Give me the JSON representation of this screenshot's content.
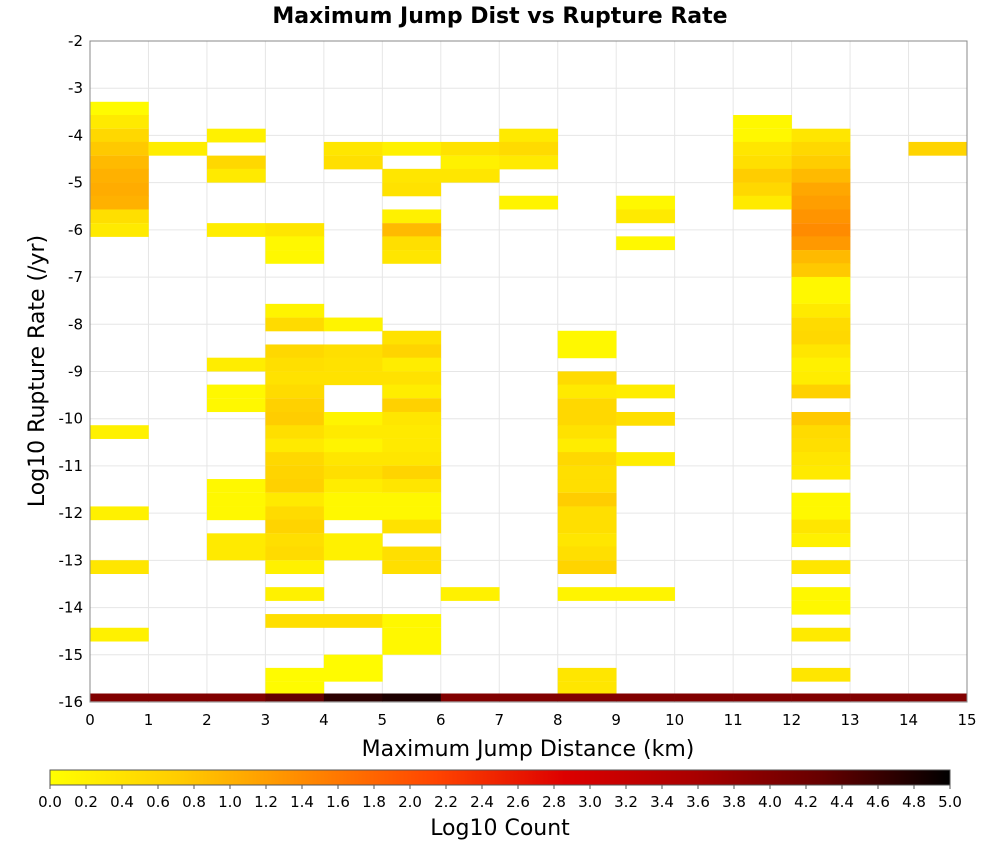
{
  "chart_data": {
    "type": "heatmap",
    "title": "Maximum Jump Dist vs Rupture Rate",
    "xlabel": "Maximum Jump Distance (km)",
    "ylabel": "Log10 Rupture Rate (/yr)",
    "xlim": [
      0,
      15
    ],
    "ylim": [
      -16,
      -2
    ],
    "x_ticks": [
      "0",
      "1",
      "2",
      "3",
      "4",
      "5",
      "6",
      "7",
      "8",
      "9",
      "10",
      "11",
      "12",
      "13",
      "14",
      "15"
    ],
    "y_ticks": [
      "-2",
      "-3",
      "-4",
      "-5",
      "-6",
      "-7",
      "-8",
      "-9",
      "-10",
      "-11",
      "-12",
      "-13",
      "-14",
      "-15",
      "-16"
    ],
    "x_bin_width": 1,
    "y_bin_height": 0.285,
    "grid": true,
    "colorbar": {
      "label": "Log10 Count",
      "range": [
        0,
        5
      ],
      "ticks": [
        "0.0",
        "0.2",
        "0.4",
        "0.6",
        "0.8",
        "1.0",
        "1.2",
        "1.4",
        "1.6",
        "1.8",
        "2.0",
        "2.2",
        "2.4",
        "2.6",
        "2.8",
        "3.0",
        "3.2",
        "3.4",
        "3.6",
        "3.8",
        "4.0",
        "4.2",
        "4.4",
        "4.6",
        "4.8",
        "5.0"
      ],
      "colors": [
        "#ffff00",
        "#ffcc00",
        "#ff8800",
        "#ff4400",
        "#dd0000",
        "#aa0000",
        "#660000",
        "#000000"
      ]
    },
    "cells": [
      {
        "x": 0,
        "y": -3.43,
        "v": 0.05
      },
      {
        "x": 0,
        "y": -3.71,
        "v": 0.3
      },
      {
        "x": 0,
        "y": -4.0,
        "v": 0.55
      },
      {
        "x": 0,
        "y": -4.28,
        "v": 0.75
      },
      {
        "x": 0,
        "y": -4.57,
        "v": 0.9
      },
      {
        "x": 0,
        "y": -4.85,
        "v": 1.0
      },
      {
        "x": 0,
        "y": -5.14,
        "v": 1.05
      },
      {
        "x": 0,
        "y": -5.42,
        "v": 1.0
      },
      {
        "x": 0,
        "y": -5.71,
        "v": 0.45
      },
      {
        "x": 0,
        "y": -6.0,
        "v": 0.3
      },
      {
        "x": 0,
        "y": -10.28,
        "v": 0.2
      },
      {
        "x": 0,
        "y": -12.0,
        "v": 0.2
      },
      {
        "x": 0,
        "y": -13.14,
        "v": 0.35
      },
      {
        "x": 0,
        "y": -14.57,
        "v": 0.2
      },
      {
        "x": 1,
        "y": -4.28,
        "v": 0.25
      },
      {
        "x": 2,
        "y": -4.0,
        "v": 0.2
      },
      {
        "x": 2,
        "y": -4.57,
        "v": 0.55
      },
      {
        "x": 2,
        "y": -4.85,
        "v": 0.3
      },
      {
        "x": 2,
        "y": -6.0,
        "v": 0.25
      },
      {
        "x": 2,
        "y": -8.85,
        "v": 0.25
      },
      {
        "x": 2,
        "y": -9.42,
        "v": 0.1
      },
      {
        "x": 2,
        "y": -9.71,
        "v": 0.1
      },
      {
        "x": 2,
        "y": -11.42,
        "v": 0.1
      },
      {
        "x": 2,
        "y": -11.71,
        "v": 0.1
      },
      {
        "x": 2,
        "y": -12.0,
        "v": 0.1
      },
      {
        "x": 2,
        "y": -12.57,
        "v": 0.3
      },
      {
        "x": 2,
        "y": -12.85,
        "v": 0.3
      },
      {
        "x": 3,
        "y": -6.0,
        "v": 0.35
      },
      {
        "x": 3,
        "y": -6.28,
        "v": 0.1
      },
      {
        "x": 3,
        "y": -6.57,
        "v": 0.1
      },
      {
        "x": 3,
        "y": -7.71,
        "v": 0.15
      },
      {
        "x": 3,
        "y": -8.0,
        "v": 0.5
      },
      {
        "x": 3,
        "y": -8.57,
        "v": 0.55
      },
      {
        "x": 3,
        "y": -8.85,
        "v": 0.45
      },
      {
        "x": 3,
        "y": -9.14,
        "v": 0.4
      },
      {
        "x": 3,
        "y": -9.42,
        "v": 0.5
      },
      {
        "x": 3,
        "y": -9.71,
        "v": 0.65
      },
      {
        "x": 3,
        "y": -10.0,
        "v": 0.7
      },
      {
        "x": 3,
        "y": -10.28,
        "v": 0.45
      },
      {
        "x": 3,
        "y": -10.57,
        "v": 0.3
      },
      {
        "x": 3,
        "y": -10.85,
        "v": 0.55
      },
      {
        "x": 3,
        "y": -11.14,
        "v": 0.6
      },
      {
        "x": 3,
        "y": -11.42,
        "v": 0.65
      },
      {
        "x": 3,
        "y": -11.71,
        "v": 0.3
      },
      {
        "x": 3,
        "y": -12.0,
        "v": 0.5
      },
      {
        "x": 3,
        "y": -12.28,
        "v": 0.6
      },
      {
        "x": 3,
        "y": -12.57,
        "v": 0.45
      },
      {
        "x": 3,
        "y": -12.85,
        "v": 0.5
      },
      {
        "x": 3,
        "y": -13.14,
        "v": 0.2
      },
      {
        "x": 3,
        "y": -13.71,
        "v": 0.2
      },
      {
        "x": 3,
        "y": -14.28,
        "v": 0.45
      },
      {
        "x": 3,
        "y": -15.42,
        "v": 0.05
      },
      {
        "x": 3,
        "y": -15.71,
        "v": 0.05
      },
      {
        "x": 4,
        "y": -4.28,
        "v": 0.35
      },
      {
        "x": 4,
        "y": -4.57,
        "v": 0.45
      },
      {
        "x": 4,
        "y": -8.0,
        "v": 0.15
      },
      {
        "x": 4,
        "y": -8.57,
        "v": 0.45
      },
      {
        "x": 4,
        "y": -8.85,
        "v": 0.4
      },
      {
        "x": 4,
        "y": -9.14,
        "v": 0.4
      },
      {
        "x": 4,
        "y": -10.0,
        "v": 0.15
      },
      {
        "x": 4,
        "y": -10.28,
        "v": 0.3
      },
      {
        "x": 4,
        "y": -10.57,
        "v": 0.15
      },
      {
        "x": 4,
        "y": -10.85,
        "v": 0.35
      },
      {
        "x": 4,
        "y": -11.14,
        "v": 0.45
      },
      {
        "x": 4,
        "y": -11.42,
        "v": 0.25
      },
      {
        "x": 4,
        "y": -11.71,
        "v": 0.1
      },
      {
        "x": 4,
        "y": -12.0,
        "v": 0.1
      },
      {
        "x": 4,
        "y": -12.57,
        "v": 0.2
      },
      {
        "x": 4,
        "y": -12.85,
        "v": 0.2
      },
      {
        "x": 4,
        "y": -14.28,
        "v": 0.45
      },
      {
        "x": 4,
        "y": -15.14,
        "v": 0.05
      },
      {
        "x": 4,
        "y": -15.42,
        "v": 0.05
      },
      {
        "x": 5,
        "y": -4.28,
        "v": 0.2
      },
      {
        "x": 5,
        "y": -4.85,
        "v": 0.35
      },
      {
        "x": 5,
        "y": -5.14,
        "v": 0.4
      },
      {
        "x": 5,
        "y": -5.71,
        "v": 0.2
      },
      {
        "x": 5,
        "y": -6.0,
        "v": 0.9
      },
      {
        "x": 5,
        "y": -6.28,
        "v": 0.45
      },
      {
        "x": 5,
        "y": -6.57,
        "v": 0.35
      },
      {
        "x": 5,
        "y": -8.28,
        "v": 0.4
      },
      {
        "x": 5,
        "y": -8.57,
        "v": 0.6
      },
      {
        "x": 5,
        "y": -8.85,
        "v": 0.25
      },
      {
        "x": 5,
        "y": -9.14,
        "v": 0.4
      },
      {
        "x": 5,
        "y": -9.42,
        "v": 0.25
      },
      {
        "x": 5,
        "y": -9.71,
        "v": 0.65
      },
      {
        "x": 5,
        "y": -10.0,
        "v": 0.35
      },
      {
        "x": 5,
        "y": -10.28,
        "v": 0.3
      },
      {
        "x": 5,
        "y": -10.57,
        "v": 0.3
      },
      {
        "x": 5,
        "y": -10.85,
        "v": 0.35
      },
      {
        "x": 5,
        "y": -11.14,
        "v": 0.6
      },
      {
        "x": 5,
        "y": -11.42,
        "v": 0.35
      },
      {
        "x": 5,
        "y": -11.71,
        "v": 0.1
      },
      {
        "x": 5,
        "y": -12.0,
        "v": 0.1
      },
      {
        "x": 5,
        "y": -12.28,
        "v": 0.4
      },
      {
        "x": 5,
        "y": -12.85,
        "v": 0.45
      },
      {
        "x": 5,
        "y": -13.14,
        "v": 0.45
      },
      {
        "x": 5,
        "y": -14.28,
        "v": 0.1
      },
      {
        "x": 5,
        "y": -14.57,
        "v": 0.1
      },
      {
        "x": 5,
        "y": -14.85,
        "v": 0.1
      },
      {
        "x": 6,
        "y": -4.28,
        "v": 0.4
      },
      {
        "x": 6,
        "y": -4.57,
        "v": 0.2
      },
      {
        "x": 6,
        "y": -4.85,
        "v": 0.35
      },
      {
        "x": 6,
        "y": -13.71,
        "v": 0.2
      },
      {
        "x": 7,
        "y": -4.0,
        "v": 0.3
      },
      {
        "x": 7,
        "y": -4.28,
        "v": 0.5
      },
      {
        "x": 7,
        "y": -4.57,
        "v": 0.3
      },
      {
        "x": 7,
        "y": -5.42,
        "v": 0.15
      },
      {
        "x": 8,
        "y": -8.28,
        "v": 0.1
      },
      {
        "x": 8,
        "y": -8.57,
        "v": 0.1
      },
      {
        "x": 8,
        "y": -9.14,
        "v": 0.5
      },
      {
        "x": 8,
        "y": -9.42,
        "v": 0.3
      },
      {
        "x": 8,
        "y": -9.71,
        "v": 0.55
      },
      {
        "x": 8,
        "y": -10.0,
        "v": 0.55
      },
      {
        "x": 8,
        "y": -10.28,
        "v": 0.4
      },
      {
        "x": 8,
        "y": -10.57,
        "v": 0.25
      },
      {
        "x": 8,
        "y": -10.85,
        "v": 0.55
      },
      {
        "x": 8,
        "y": -11.14,
        "v": 0.45
      },
      {
        "x": 8,
        "y": -11.42,
        "v": 0.45
      },
      {
        "x": 8,
        "y": -11.71,
        "v": 0.7
      },
      {
        "x": 8,
        "y": -12.0,
        "v": 0.45
      },
      {
        "x": 8,
        "y": -12.28,
        "v": 0.45
      },
      {
        "x": 8,
        "y": -12.57,
        "v": 0.35
      },
      {
        "x": 8,
        "y": -12.85,
        "v": 0.45
      },
      {
        "x": 8,
        "y": -13.14,
        "v": 0.6
      },
      {
        "x": 8,
        "y": -13.71,
        "v": 0.15
      },
      {
        "x": 8,
        "y": -15.42,
        "v": 0.35
      },
      {
        "x": 8,
        "y": -15.71,
        "v": 0.35
      },
      {
        "x": 9,
        "y": -5.42,
        "v": 0.1
      },
      {
        "x": 9,
        "y": -5.71,
        "v": 0.3
      },
      {
        "x": 9,
        "y": -6.28,
        "v": 0.1
      },
      {
        "x": 9,
        "y": -9.42,
        "v": 0.25
      },
      {
        "x": 9,
        "y": -10.0,
        "v": 0.45
      },
      {
        "x": 9,
        "y": -10.85,
        "v": 0.25
      },
      {
        "x": 9,
        "y": -13.71,
        "v": 0.15
      },
      {
        "x": 11,
        "y": -3.71,
        "v": 0.1
      },
      {
        "x": 11,
        "y": -4.0,
        "v": 0.1
      },
      {
        "x": 11,
        "y": -4.28,
        "v": 0.35
      },
      {
        "x": 11,
        "y": -4.57,
        "v": 0.45
      },
      {
        "x": 11,
        "y": -4.85,
        "v": 0.7
      },
      {
        "x": 11,
        "y": -5.14,
        "v": 0.55
      },
      {
        "x": 11,
        "y": -5.42,
        "v": 0.3
      },
      {
        "x": 12,
        "y": -4.0,
        "v": 0.35
      },
      {
        "x": 12,
        "y": -4.28,
        "v": 0.55
      },
      {
        "x": 12,
        "y": -4.57,
        "v": 0.7
      },
      {
        "x": 12,
        "y": -4.85,
        "v": 0.9
      },
      {
        "x": 12,
        "y": -5.14,
        "v": 1.1
      },
      {
        "x": 12,
        "y": -5.42,
        "v": 1.2
      },
      {
        "x": 12,
        "y": -5.71,
        "v": 1.3
      },
      {
        "x": 12,
        "y": -6.0,
        "v": 1.4
      },
      {
        "x": 12,
        "y": -6.28,
        "v": 1.25
      },
      {
        "x": 12,
        "y": -6.57,
        "v": 0.9
      },
      {
        "x": 12,
        "y": -6.85,
        "v": 0.75
      },
      {
        "x": 12,
        "y": -7.14,
        "v": 0.1
      },
      {
        "x": 12,
        "y": -7.42,
        "v": 0.1
      },
      {
        "x": 12,
        "y": -7.71,
        "v": 0.3
      },
      {
        "x": 12,
        "y": -8.0,
        "v": 0.5
      },
      {
        "x": 12,
        "y": -8.28,
        "v": 0.55
      },
      {
        "x": 12,
        "y": -8.57,
        "v": 0.35
      },
      {
        "x": 12,
        "y": -8.85,
        "v": 0.2
      },
      {
        "x": 12,
        "y": -9.14,
        "v": 0.25
      },
      {
        "x": 12,
        "y": -9.42,
        "v": 0.65
      },
      {
        "x": 12,
        "y": -10.0,
        "v": 0.75
      },
      {
        "x": 12,
        "y": -10.28,
        "v": 0.5
      },
      {
        "x": 12,
        "y": -10.57,
        "v": 0.45
      },
      {
        "x": 12,
        "y": -10.85,
        "v": 0.35
      },
      {
        "x": 12,
        "y": -11.14,
        "v": 0.3
      },
      {
        "x": 12,
        "y": -11.71,
        "v": 0.1
      },
      {
        "x": 12,
        "y": -12.0,
        "v": 0.1
      },
      {
        "x": 12,
        "y": -12.28,
        "v": 0.35
      },
      {
        "x": 12,
        "y": -12.57,
        "v": 0.2
      },
      {
        "x": 12,
        "y": -13.14,
        "v": 0.35
      },
      {
        "x": 12,
        "y": -13.71,
        "v": 0.1
      },
      {
        "x": 12,
        "y": -14.0,
        "v": 0.1
      },
      {
        "x": 12,
        "y": -14.57,
        "v": 0.3
      },
      {
        "x": 12,
        "y": -15.42,
        "v": 0.35
      },
      {
        "x": 14,
        "y": -4.28,
        "v": 0.6
      },
      {
        "x": 0,
        "y": -15.9,
        "v": 4.0
      },
      {
        "x": 1,
        "y": -15.9,
        "v": 4.0
      },
      {
        "x": 2,
        "y": -15.9,
        "v": 4.0
      },
      {
        "x": 3,
        "y": -15.9,
        "v": 4.3
      },
      {
        "x": 4,
        "y": -15.9,
        "v": 4.7
      },
      {
        "x": 5,
        "y": -15.9,
        "v": 4.8
      },
      {
        "x": 6,
        "y": -15.9,
        "v": 4.0
      },
      {
        "x": 7,
        "y": -15.9,
        "v": 4.0
      },
      {
        "x": 8,
        "y": -15.9,
        "v": 4.0
      },
      {
        "x": 9,
        "y": -15.9,
        "v": 4.0
      },
      {
        "x": 10,
        "y": -15.9,
        "v": 4.0
      },
      {
        "x": 11,
        "y": -15.9,
        "v": 4.0
      },
      {
        "x": 12,
        "y": -15.9,
        "v": 4.0
      },
      {
        "x": 13,
        "y": -15.9,
        "v": 4.0
      },
      {
        "x": 14,
        "y": -15.9,
        "v": 4.0
      }
    ]
  }
}
